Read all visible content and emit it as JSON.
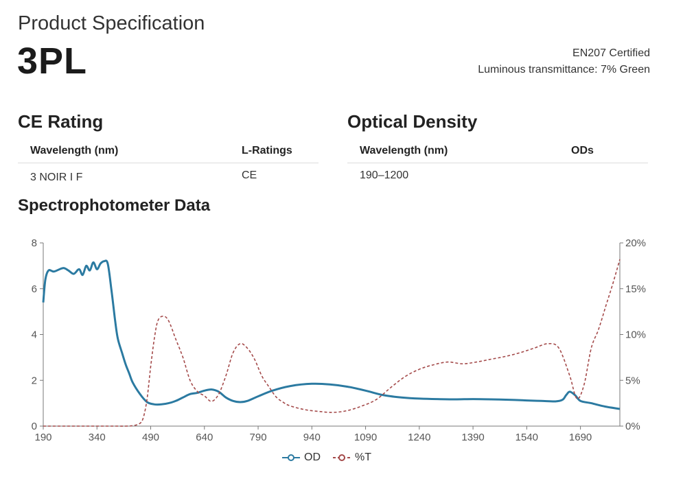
{
  "header": {
    "title": "Product Specification",
    "product": "3PL",
    "certification": "EN207 Certified",
    "transmittance": "Luminous transmittance: 7% Green"
  },
  "ce_rating": {
    "heading": "CE Rating",
    "columns": [
      "Wavelength (nm)",
      "L-Ratings"
    ],
    "rows": [
      [
        "3 NOIR I F",
        "CE"
      ]
    ]
  },
  "optical_density": {
    "heading": "Optical Density",
    "columns": [
      "Wavelength (nm)",
      "ODs"
    ],
    "rows": [
      [
        "190–1200",
        ""
      ]
    ]
  },
  "spectro": {
    "heading": "Spectrophotometer Data"
  },
  "colors": {
    "od": "#2b7aa1",
    "t": "#a44a4a",
    "axis": "#777777"
  },
  "chart_data": {
    "type": "line",
    "xlim": [
      190,
      1800
    ],
    "x_ticks": [
      190,
      340,
      490,
      640,
      790,
      940,
      1090,
      1240,
      1390,
      1540,
      1690
    ],
    "y_left": {
      "label": "OD",
      "lim": [
        0,
        8
      ],
      "ticks": [
        0,
        2,
        4,
        6,
        8
      ]
    },
    "y_right": {
      "label": "%T",
      "lim": [
        0,
        20
      ],
      "ticks": [
        0,
        5,
        10,
        15,
        20
      ],
      "tick_labels": [
        "0%",
        "5%",
        "10%",
        "15%",
        "20%"
      ]
    },
    "legend": [
      "OD",
      "%T"
    ],
    "legend_position": "bottom-center",
    "series": [
      {
        "name": "OD",
        "axis": "left",
        "style": "solid",
        "x": [
          190,
          196,
          205,
          220,
          245,
          260,
          275,
          290,
          300,
          310,
          320,
          330,
          340,
          350,
          360,
          370,
          380,
          390,
          395,
          400,
          410,
          420,
          430,
          440,
          460,
          480,
          500,
          520,
          540,
          560,
          580,
          600,
          620,
          640,
          660,
          680,
          700,
          720,
          740,
          760,
          790,
          830,
          880,
          940,
          990,
          1040,
          1090,
          1140,
          1190,
          1240,
          1290,
          1340,
          1390,
          1440,
          1490,
          1540,
          1580,
          1620,
          1640,
          1650,
          1660,
          1675,
          1690,
          1720,
          1760,
          1800
        ],
        "y": [
          5.4,
          6.4,
          6.8,
          6.75,
          6.9,
          6.8,
          6.65,
          6.85,
          6.6,
          7.0,
          6.8,
          7.15,
          6.85,
          7.1,
          7.2,
          7.1,
          6.0,
          4.7,
          4.1,
          3.7,
          3.2,
          2.7,
          2.3,
          1.9,
          1.4,
          1.05,
          0.95,
          0.95,
          1.0,
          1.1,
          1.25,
          1.4,
          1.45,
          1.55,
          1.6,
          1.5,
          1.25,
          1.1,
          1.05,
          1.1,
          1.3,
          1.55,
          1.75,
          1.85,
          1.82,
          1.72,
          1.55,
          1.35,
          1.25,
          1.2,
          1.18,
          1.17,
          1.18,
          1.17,
          1.15,
          1.12,
          1.1,
          1.08,
          1.15,
          1.35,
          1.5,
          1.35,
          1.1,
          1.0,
          0.85,
          0.75
        ]
      },
      {
        "name": "%T",
        "axis": "right",
        "style": "dashed",
        "x": [
          190,
          380,
          420,
          440,
          460,
          470,
          480,
          490,
          500,
          510,
          525,
          540,
          560,
          580,
          600,
          620,
          640,
          660,
          680,
          700,
          720,
          740,
          760,
          780,
          800,
          820,
          840,
          860,
          880,
          920,
          960,
          1000,
          1040,
          1080,
          1120,
          1160,
          1200,
          1240,
          1280,
          1320,
          1360,
          1400,
          1440,
          1480,
          1520,
          1560,
          1600,
          1630,
          1660,
          1680,
          1700,
          1720,
          1740,
          1760,
          1780,
          1800
        ],
        "y": [
          0,
          0,
          0,
          0.05,
          0.3,
          1.0,
          3.0,
          6.5,
          9.5,
          11.5,
          12.0,
          11.5,
          9.5,
          7.5,
          5.0,
          3.8,
          3.3,
          2.7,
          3.5,
          5.5,
          8.0,
          9.0,
          8.5,
          7.3,
          5.5,
          4.3,
          3.2,
          2.6,
          2.2,
          1.8,
          1.6,
          1.5,
          1.7,
          2.2,
          2.9,
          4.2,
          5.4,
          6.2,
          6.7,
          7.0,
          6.8,
          7.0,
          7.3,
          7.6,
          8.0,
          8.5,
          9.0,
          8.5,
          5.5,
          3.0,
          4.5,
          8.5,
          10.5,
          13.0,
          15.5,
          18.2
        ]
      }
    ]
  }
}
